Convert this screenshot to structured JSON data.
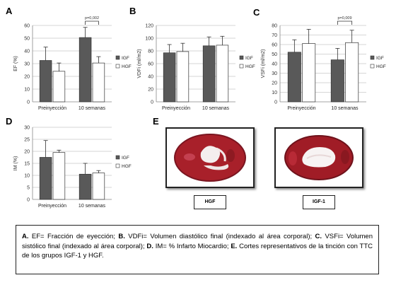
{
  "chart_data": [
    {
      "panel": "A",
      "type": "bar",
      "ylabel": "EF (%)",
      "ylim": [
        0,
        60
      ],
      "ticks": [
        0,
        10,
        20,
        30,
        40,
        50,
        60
      ],
      "categories": [
        "Preinyección",
        "10 semanas"
      ],
      "series": [
        {
          "name": "IGF",
          "values": [
            32.5,
            50.5
          ],
          "errors": [
            10.5,
            8
          ]
        },
        {
          "name": "HGF",
          "values": [
            24,
            30.5
          ],
          "errors": [
            6.5,
            5
          ]
        }
      ],
      "significance": {
        "category_index": 1,
        "label": "p=0,002"
      },
      "grid": true,
      "legend": "right"
    },
    {
      "panel": "B",
      "type": "bar",
      "ylabel": "VDFi (ml/m2)",
      "ylim": [
        0,
        120
      ],
      "ticks": [
        0,
        20,
        40,
        60,
        80,
        100,
        120
      ],
      "categories": [
        "Preinyección",
        "10 semanas"
      ],
      "series": [
        {
          "name": "IGF",
          "values": [
            77,
            88
          ],
          "errors": [
            13,
            14
          ]
        },
        {
          "name": "HGF",
          "values": [
            79,
            89
          ],
          "errors": [
            13,
            14
          ]
        }
      ],
      "grid": true,
      "legend": "right"
    },
    {
      "panel": "C",
      "type": "bar",
      "ylabel": "VSFi (ml/m2)",
      "ylim": [
        0,
        80
      ],
      "ticks": [
        0,
        10,
        20,
        30,
        40,
        50,
        60,
        70,
        80
      ],
      "categories": [
        "Preinyección",
        "10 semanas"
      ],
      "series": [
        {
          "name": "IGF",
          "values": [
            52,
            44
          ],
          "errors": [
            13,
            12
          ]
        },
        {
          "name": "HGF",
          "values": [
            61,
            62
          ],
          "errors": [
            15,
            13
          ]
        }
      ],
      "significance": {
        "category_index": 1,
        "label": "p=0,009"
      },
      "grid": true,
      "legend": "right"
    },
    {
      "panel": "D",
      "type": "bar",
      "ylabel": "IM (%)",
      "ylim": [
        0,
        30
      ],
      "ticks": [
        0,
        5,
        10,
        15,
        20,
        25,
        30
      ],
      "categories": [
        "Preinyección",
        "10 semanas"
      ],
      "series": [
        {
          "name": "IGF",
          "values": [
            17.5,
            10.5
          ],
          "errors": [
            7,
            4.5
          ]
        },
        {
          "name": "HGF",
          "values": [
            19.5,
            11
          ],
          "errors": [
            1,
            1
          ]
        }
      ],
      "grid": true,
      "legend": "right"
    }
  ],
  "colors": {
    "IGF": "#595959",
    "HGF": "#ffffff",
    "stroke": "#333333",
    "grid": "#c8c8c8",
    "tissue": "#a8202a"
  },
  "figure_e": {
    "label": "E",
    "left_label": "HGF",
    "right_label": "IGF-1"
  },
  "caption": {
    "a_key": "A.",
    "a_text": " EF= Fracción de eyección;  ",
    "b_key": "B.",
    "b_text": " VDFi= Volumen diastólico final (indexado al área corporal);  ",
    "c_key": "C.",
    "c_text": " VSFi= Volumen sistólico final (indexado al área corporal); ",
    "d_key": "D.",
    "d_text": " IM= % Infarto Miocardio;  ",
    "e_key": "E.",
    "e_text": " Cortes representativos de la tinción con TTC de los grupos IGF-1 y HGF."
  }
}
